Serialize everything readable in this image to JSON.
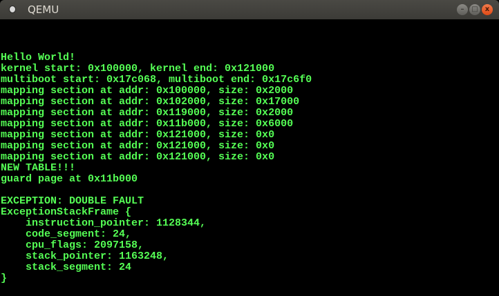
{
  "window": {
    "title": "QEMU",
    "minimize_icon": "–",
    "maximize_icon": "□",
    "close_icon": "x"
  },
  "console": {
    "text_color": "#55ff55",
    "start_row": 3,
    "lines": [
      "Hello World!",
      "kernel start: 0x100000, kernel end: 0x121000",
      "multiboot start: 0x17c068, multiboot end: 0x17c6f0",
      "mapping section at addr: 0x100000, size: 0x2000",
      "mapping section at addr: 0x102000, size: 0x17000",
      "mapping section at addr: 0x119000, size: 0x2000",
      "mapping section at addr: 0x11b000, size: 0x6000",
      "mapping section at addr: 0x121000, size: 0x0",
      "mapping section at addr: 0x121000, size: 0x0",
      "mapping section at addr: 0x121000, size: 0x0",
      "NEW TABLE!!!",
      "guard page at 0x11b000",
      "",
      "EXCEPTION: DOUBLE FAULT",
      "ExceptionStackFrame {",
      "    instruction_pointer: 1128344,",
      "    code_segment: 24,",
      "    cpu_flags: 2097158,",
      "    stack_pointer: 1163248,",
      "    stack_segment: 24",
      "}"
    ]
  }
}
